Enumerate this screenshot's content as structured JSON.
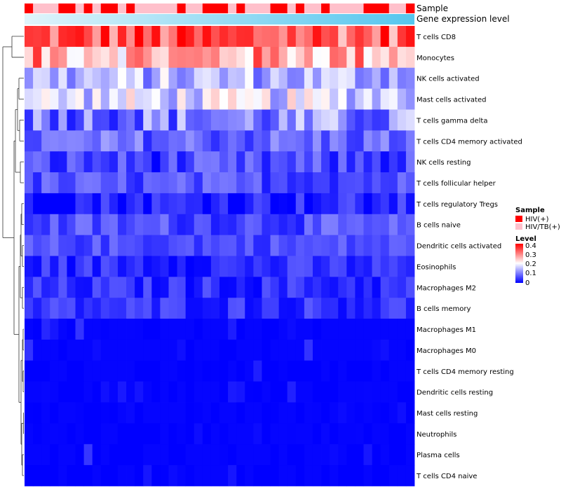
{
  "chart_data": {
    "type": "heatmap",
    "title": "",
    "annotation_labels": {
      "sample": "Sample",
      "expression": "Gene expression level"
    },
    "rows": [
      "T cells CD8",
      "Monocytes",
      "NK cells activated",
      "Mast cells activated",
      "T cells gamma delta",
      "T cells CD4 memory activated",
      "NK cells resting",
      "T cells follicular helper",
      "T cells regulatory  Tregs",
      "B cells naive",
      "Dendritic cells activated",
      "Eosinophils",
      "Macrophages M2",
      "B cells memory",
      "Macrophages M1",
      "Macrophages M0",
      "T cells CD4 memory resting",
      "Dendritic cells resting",
      "Mast cells resting",
      "Neutrophils",
      "Plasma cells",
      "T cells CD4 naive"
    ],
    "n_columns": 46,
    "sample_groups": [
      "HIV(+)",
      "HIV/TB(+)"
    ],
    "sample_annotation": [
      1,
      0,
      0,
      0,
      1,
      1,
      0,
      1,
      0,
      1,
      1,
      0,
      1,
      0,
      0,
      0,
      0,
      0,
      1,
      0,
      0,
      1,
      1,
      1,
      0,
      1,
      0,
      0,
      0,
      1,
      1,
      0,
      1,
      0,
      0,
      1,
      0,
      0,
      0,
      0,
      1,
      1,
      1,
      0,
      0,
      1
    ],
    "level_range": [
      0,
      0.4
    ],
    "row_means": [
      0.33,
      0.27,
      0.14,
      0.17,
      0.1,
      0.08,
      0.05,
      0.06,
      0.03,
      0.06,
      0.06,
      0.035,
      0.035,
      0.04,
      0.015,
      0.02,
      0.005,
      0.007,
      0.004,
      0.003,
      0.012,
      0.004
    ],
    "row_spread": [
      0.09,
      0.09,
      0.07,
      0.07,
      0.08,
      0.05,
      0.05,
      0.04,
      0.04,
      0.04,
      0.03,
      0.035,
      0.035,
      0.035,
      0.03,
      0.03,
      0.02,
      0.02,
      0.01,
      0.008,
      0.04,
      0.02
    ],
    "legend": {
      "sample_title": "Sample",
      "sample_items": [
        {
          "label": "HIV(+)",
          "color": "#ff0000"
        },
        {
          "label": "HIV/TB(+)",
          "color": "#ffc0cb"
        }
      ],
      "level_title": "Level",
      "level_ticks": [
        "0.4",
        "0.3",
        "0.2",
        "0.1",
        "0"
      ]
    },
    "colors": {
      "low": "#0000ff",
      "mid": "#ffffff",
      "high": "#ff0000",
      "expr_start": "#e0f4fb",
      "expr_end": "#55c6ee"
    }
  }
}
